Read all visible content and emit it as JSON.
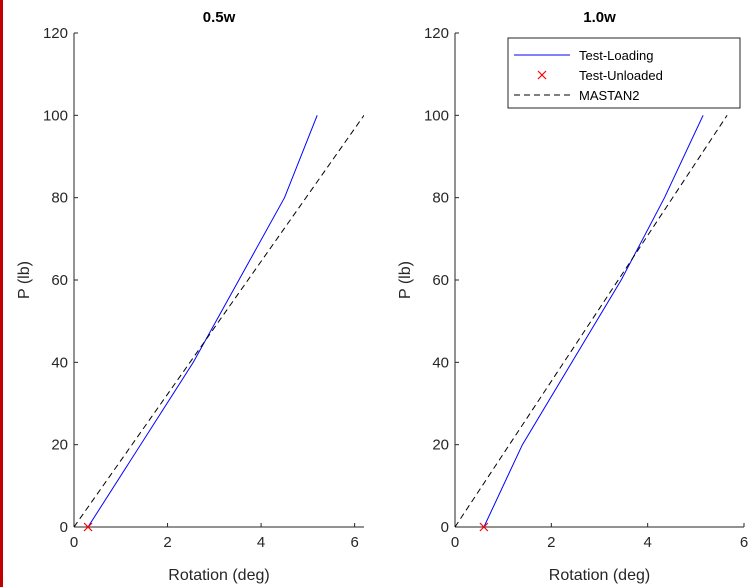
{
  "chart_data": [
    {
      "type": "line",
      "title": "0.5w",
      "xlabel": "Rotation (deg)",
      "ylabel": "P (lb)",
      "xlim": [
        0,
        6.2
      ],
      "ylim": [
        0,
        120
      ],
      "xticks": [
        0,
        2,
        4,
        6
      ],
      "yticks": [
        0,
        20,
        40,
        60,
        80,
        100,
        120
      ],
      "grid": false,
      "series": [
        {
          "name": "Test-Loading",
          "style": "solid",
          "color": "#0000ff",
          "x": [
            0.3,
            2.55,
            4.5,
            5.2
          ],
          "y": [
            0,
            40,
            80,
            100
          ]
        },
        {
          "name": "Test-Unloaded",
          "style": "marker-x",
          "color": "#ff0000",
          "x": [
            0.3
          ],
          "y": [
            0
          ]
        },
        {
          "name": "MASTAN2",
          "style": "dashed",
          "color": "#000000",
          "x": [
            0.0,
            6.2
          ],
          "y": [
            0,
            100
          ]
        }
      ]
    },
    {
      "type": "line",
      "title": "1.0w",
      "xlabel": "Rotation (deg)",
      "ylabel": "P (lb)",
      "xlim": [
        0,
        6
      ],
      "ylim": [
        0,
        120
      ],
      "xticks": [
        0,
        2,
        4,
        6
      ],
      "yticks": [
        0,
        20,
        40,
        60,
        80,
        100,
        120
      ],
      "grid": false,
      "legend_position": "top-right",
      "series": [
        {
          "name": "Test-Loading",
          "style": "solid",
          "color": "#0000ff",
          "x": [
            0.6,
            1.4,
            3.45,
            4.35,
            5.15
          ],
          "y": [
            0,
            20,
            60,
            80,
            100
          ]
        },
        {
          "name": "Test-Unloaded",
          "style": "marker-x",
          "color": "#ff0000",
          "x": [
            0.6
          ],
          "y": [
            0
          ]
        },
        {
          "name": "MASTAN2",
          "style": "dashed",
          "color": "#000000",
          "x": [
            0.0,
            5.65
          ],
          "y": [
            0,
            100
          ]
        }
      ]
    }
  ]
}
